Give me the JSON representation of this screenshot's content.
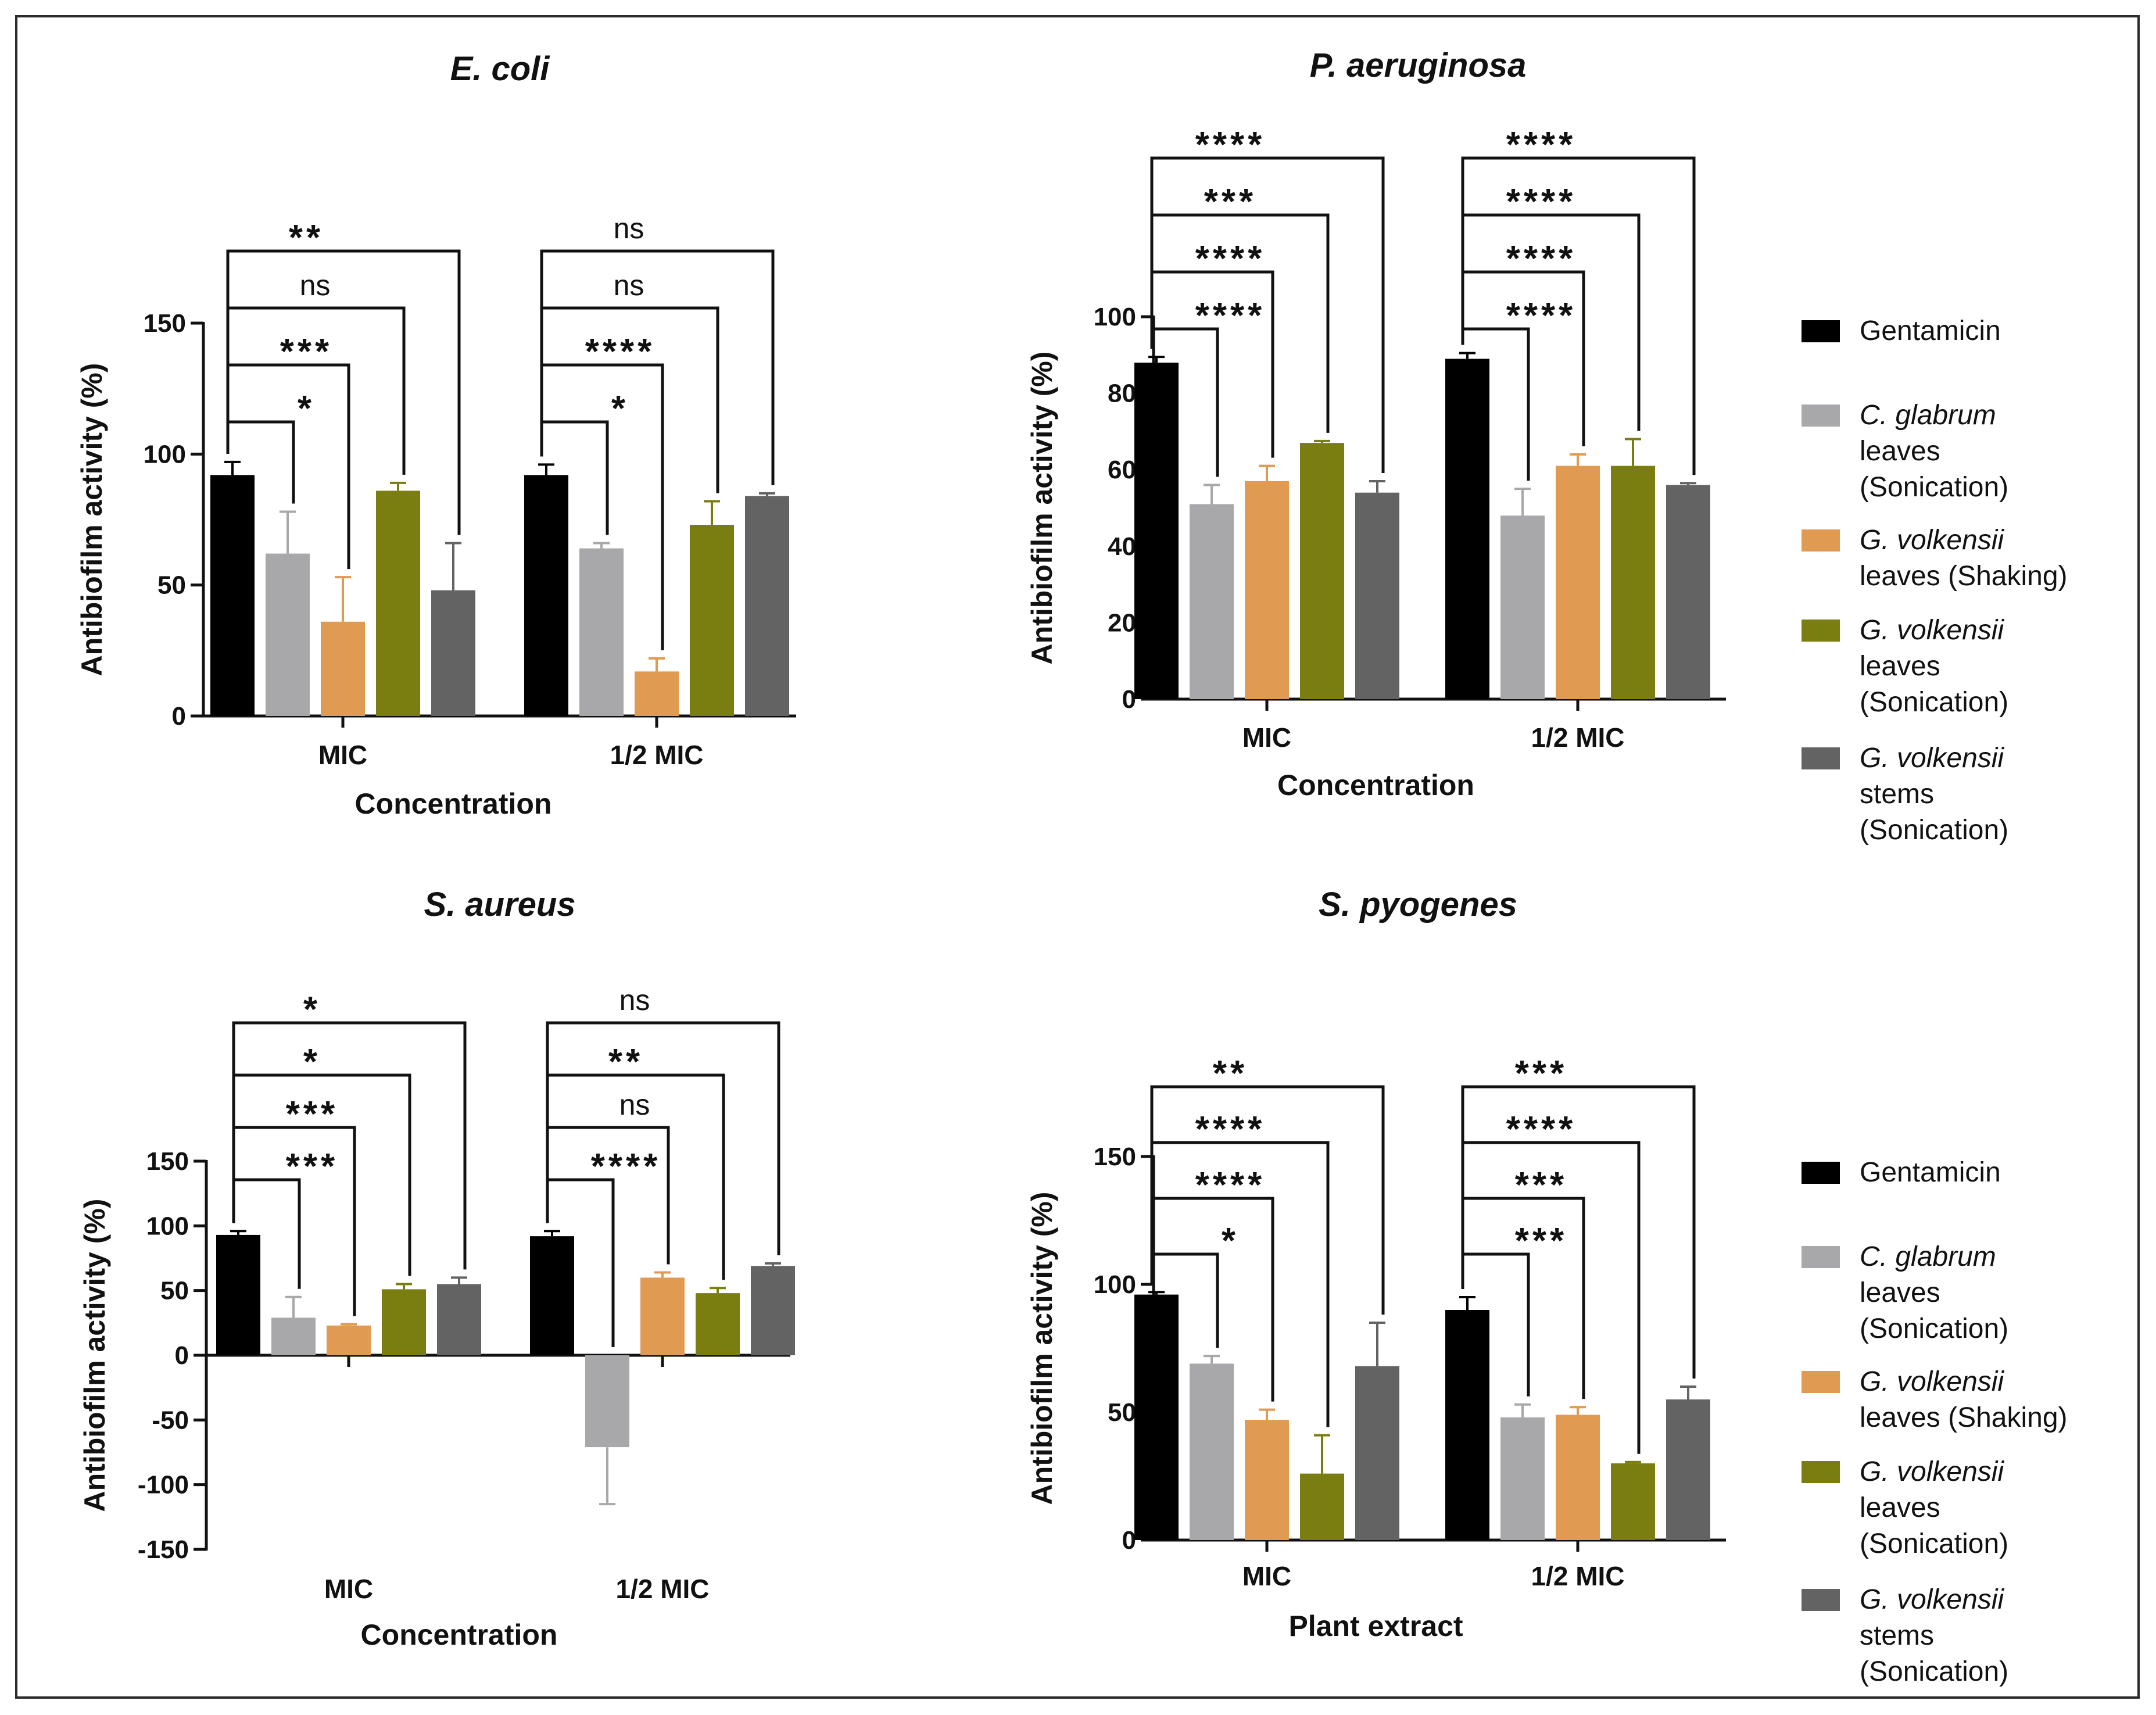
{
  "legend_colors": [
    "#000000",
    "#a8a8aa",
    "#e09a52",
    "#7a7e10",
    "#636363"
  ],
  "legends": [
    {
      "entries": [
        {
          "line1": "Gentamicin",
          "line1_italic": false,
          "line2": "",
          "line3": ""
        },
        {
          "line1": "C. glabrum",
          "line1_italic": true,
          "line2": "leaves",
          "line3": "(Sonication)"
        },
        {
          "line1": "G. volkensii",
          "line1_italic": true,
          "line2": "leaves (Shaking)",
          "line3": ""
        },
        {
          "line1": "G. volkensii",
          "line1_italic": true,
          "line2": "leaves",
          "line3": "(Sonication)"
        },
        {
          "line1": "G. volkensii",
          "line1_italic": true,
          "line2": "stems",
          "line3": "(Sonication)"
        }
      ]
    },
    {
      "entries": [
        {
          "line1": "Gentamicin",
          "line1_italic": false,
          "line2": "",
          "line3": ""
        },
        {
          "line1": "C. glabrum",
          "line1_italic": true,
          "line2": "leaves",
          "line3": "(Sonication)"
        },
        {
          "line1": "G. volkensii",
          "line1_italic": true,
          "line2": "leaves (Shaking)",
          "line3": ""
        },
        {
          "line1": "G. volkensii",
          "line1_italic": true,
          "line2": "leaves",
          "line3": "(Sonication)"
        },
        {
          "line1": "G. volkensii",
          "line1_italic": true,
          "line2": "stems",
          "line3": "(Sonication)"
        }
      ]
    }
  ],
  "chart_data": [
    {
      "type": "bar",
      "title": "E. coli",
      "xlabel": "Concentration",
      "ylabel": "Antibiofilm activity (%)",
      "ylim": [
        0,
        150
      ],
      "yticks": [
        0,
        50,
        100,
        150
      ],
      "categories": [
        "MIC",
        "1/2 MIC"
      ],
      "series": [
        {
          "name": "Gentamicin",
          "values": [
            92,
            92
          ],
          "errors": [
            5,
            4
          ]
        },
        {
          "name": "C. glabrum leaves (Sonication)",
          "values": [
            62,
            64
          ],
          "errors": [
            16,
            2
          ]
        },
        {
          "name": "G. volkensii leaves (Shaking)",
          "values": [
            36,
            17
          ],
          "errors": [
            17,
            5
          ]
        },
        {
          "name": "G. volkensii leaves (Sonication)",
          "values": [
            86,
            73
          ],
          "errors": [
            3,
            9
          ]
        },
        {
          "name": "G. volkensii stems (Sonication)",
          "values": [
            48,
            84
          ],
          "errors": [
            18,
            1
          ]
        }
      ],
      "significance": [
        [
          "*",
          "***",
          "ns",
          "**"
        ],
        [
          "*",
          "****",
          "ns",
          "ns"
        ]
      ]
    },
    {
      "type": "bar",
      "title": "P. aeruginosa",
      "xlabel": "Concentration",
      "ylabel": "Antibiofilm activity (%)",
      "ylim": [
        0,
        100
      ],
      "yticks": [
        0,
        20,
        40,
        60,
        80,
        100
      ],
      "categories": [
        "MIC",
        "1/2 MIC"
      ],
      "series": [
        {
          "name": "Gentamicin",
          "values": [
            88,
            89
          ],
          "errors": [
            1.5,
            1.5
          ]
        },
        {
          "name": "C. glabrum leaves (Sonication)",
          "values": [
            51,
            48
          ],
          "errors": [
            5,
            7
          ]
        },
        {
          "name": "G. volkensii leaves (Shaking)",
          "values": [
            57,
            61
          ],
          "errors": [
            4,
            3
          ]
        },
        {
          "name": "G. volkensii leaves (Sonication)",
          "values": [
            67,
            61
          ],
          "errors": [
            0.5,
            7
          ]
        },
        {
          "name": "G. volkensii stems (Sonication)",
          "values": [
            54,
            56
          ],
          "errors": [
            3,
            0.5
          ]
        }
      ],
      "significance": [
        [
          "****",
          "****",
          "***",
          "****"
        ],
        [
          "****",
          "****",
          "****",
          "****"
        ]
      ]
    },
    {
      "type": "bar",
      "title": "S. aureus",
      "xlabel": "Concentration",
      "ylabel": "Antibiofilm activity (%)",
      "ylim": [
        -150,
        150
      ],
      "yticks": [
        -150,
        -100,
        -50,
        0,
        50,
        100,
        150
      ],
      "categories": [
        "MIC",
        "1/2 MIC"
      ],
      "series": [
        {
          "name": "Gentamicin",
          "values": [
            93,
            92
          ],
          "errors": [
            3,
            4
          ]
        },
        {
          "name": "C. glabrum leaves (Sonication)",
          "values": [
            29,
            -71
          ],
          "errors": [
            16,
            44
          ]
        },
        {
          "name": "G. volkensii leaves (Shaking)",
          "values": [
            23,
            60
          ],
          "errors": [
            1,
            4
          ]
        },
        {
          "name": "G. volkensii leaves (Sonication)",
          "values": [
            51,
            48
          ],
          "errors": [
            4,
            4
          ]
        },
        {
          "name": "G. volkensii stems (Sonication)",
          "values": [
            55,
            69
          ],
          "errors": [
            5,
            2
          ]
        }
      ],
      "significance": [
        [
          "***",
          "***",
          "*",
          "*"
        ],
        [
          "****",
          "ns",
          "**",
          "ns"
        ]
      ]
    },
    {
      "type": "bar",
      "title": "S. pyogenes",
      "xlabel": "Plant extract",
      "ylabel": "Antibiofilm activity (%)",
      "ylim": [
        0,
        150
      ],
      "yticks": [
        0,
        50,
        100,
        150
      ],
      "categories": [
        "MIC",
        "1/2 MIC"
      ],
      "series": [
        {
          "name": "Gentamicin",
          "values": [
            96,
            90
          ],
          "errors": [
            1,
            5
          ]
        },
        {
          "name": "C. glabrum leaves (Sonication)",
          "values": [
            69,
            48
          ],
          "errors": [
            3,
            5
          ]
        },
        {
          "name": "G. volkensii leaves (Shaking)",
          "values": [
            47,
            49
          ],
          "errors": [
            4,
            3
          ]
        },
        {
          "name": "G. volkensii leaves (Sonication)",
          "values": [
            26,
            30
          ],
          "errors": [
            15,
            0.5
          ]
        },
        {
          "name": "G. volkensii stems (Sonication)",
          "values": [
            68,
            55
          ],
          "errors": [
            17,
            5
          ]
        }
      ],
      "significance": [
        [
          "*",
          "****",
          "****",
          "**"
        ],
        [
          "***",
          "***",
          "****",
          "***"
        ]
      ]
    }
  ]
}
